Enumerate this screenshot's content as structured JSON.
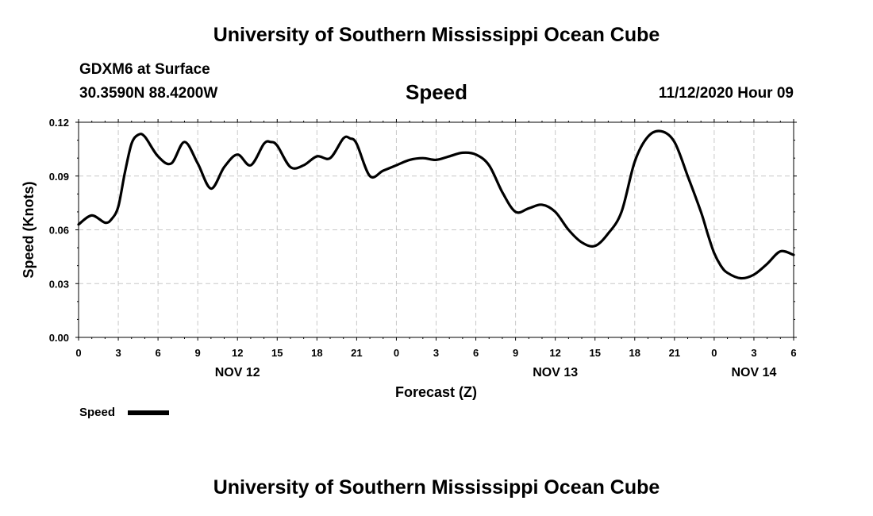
{
  "header": {
    "top_title": "University of Southern Mississippi Ocean Cube",
    "station": "GDXM6 at Surface",
    "coordinates": "30.3590N 88.4200W",
    "datetime": "11/12/2020 Hour 09"
  },
  "footer": {
    "bottom_title": "University of Southern Mississippi Ocean Cube"
  },
  "chart_data": {
    "type": "line",
    "title": "Speed",
    "xlabel": "Forecast (Z)",
    "ylabel": "Speed (Knots)",
    "ylim": [
      0,
      0.12
    ],
    "yticks": [
      "0.00",
      "0.03",
      "0.06",
      "0.09",
      "0.12"
    ],
    "xlim": [
      0,
      54
    ],
    "x_tick_labels": [
      "0",
      "3",
      "6",
      "9",
      "12",
      "15",
      "18",
      "21",
      "0",
      "3",
      "6",
      "9",
      "12",
      "15",
      "18",
      "21",
      "0",
      "3",
      "6"
    ],
    "day_labels": [
      {
        "label": "NOV 12",
        "hour": 12
      },
      {
        "label": "NOV 13",
        "hour": 36
      },
      {
        "label": "NOV 14",
        "hour": 51
      }
    ],
    "grid": true,
    "legend": "bottom-left",
    "series": [
      {
        "name": "Speed",
        "color": "#000000",
        "x": [
          0,
          1,
          2,
          2.5,
          3,
          3.5,
          4,
          4.5,
          5,
          6,
          7,
          8,
          9,
          10,
          11,
          12,
          13,
          14,
          14.5,
          15,
          16,
          17,
          18,
          19,
          20,
          20.5,
          21,
          22,
          23,
          24,
          25,
          26,
          27,
          28,
          29,
          30,
          31,
          32,
          33,
          34,
          35,
          36,
          37,
          38,
          39,
          40,
          41,
          42,
          43,
          44,
          45,
          46,
          47,
          47.5,
          48,
          48.5,
          49,
          50,
          51,
          52,
          53,
          54
        ],
        "values": [
          0.063,
          0.068,
          0.064,
          0.066,
          0.073,
          0.092,
          0.108,
          0.113,
          0.112,
          0.101,
          0.097,
          0.109,
          0.097,
          0.083,
          0.095,
          0.102,
          0.096,
          0.108,
          0.109,
          0.107,
          0.095,
          0.096,
          0.101,
          0.1,
          0.111,
          0.111,
          0.108,
          0.09,
          0.093,
          0.096,
          0.099,
          0.1,
          0.099,
          0.101,
          0.103,
          0.102,
          0.096,
          0.081,
          0.07,
          0.072,
          0.074,
          0.07,
          0.06,
          0.053,
          0.051,
          0.058,
          0.07,
          0.098,
          0.112,
          0.115,
          0.109,
          0.09,
          0.07,
          0.058,
          0.047,
          0.04,
          0.036,
          0.033,
          0.035,
          0.041,
          0.048,
          0.046
        ]
      }
    ]
  }
}
